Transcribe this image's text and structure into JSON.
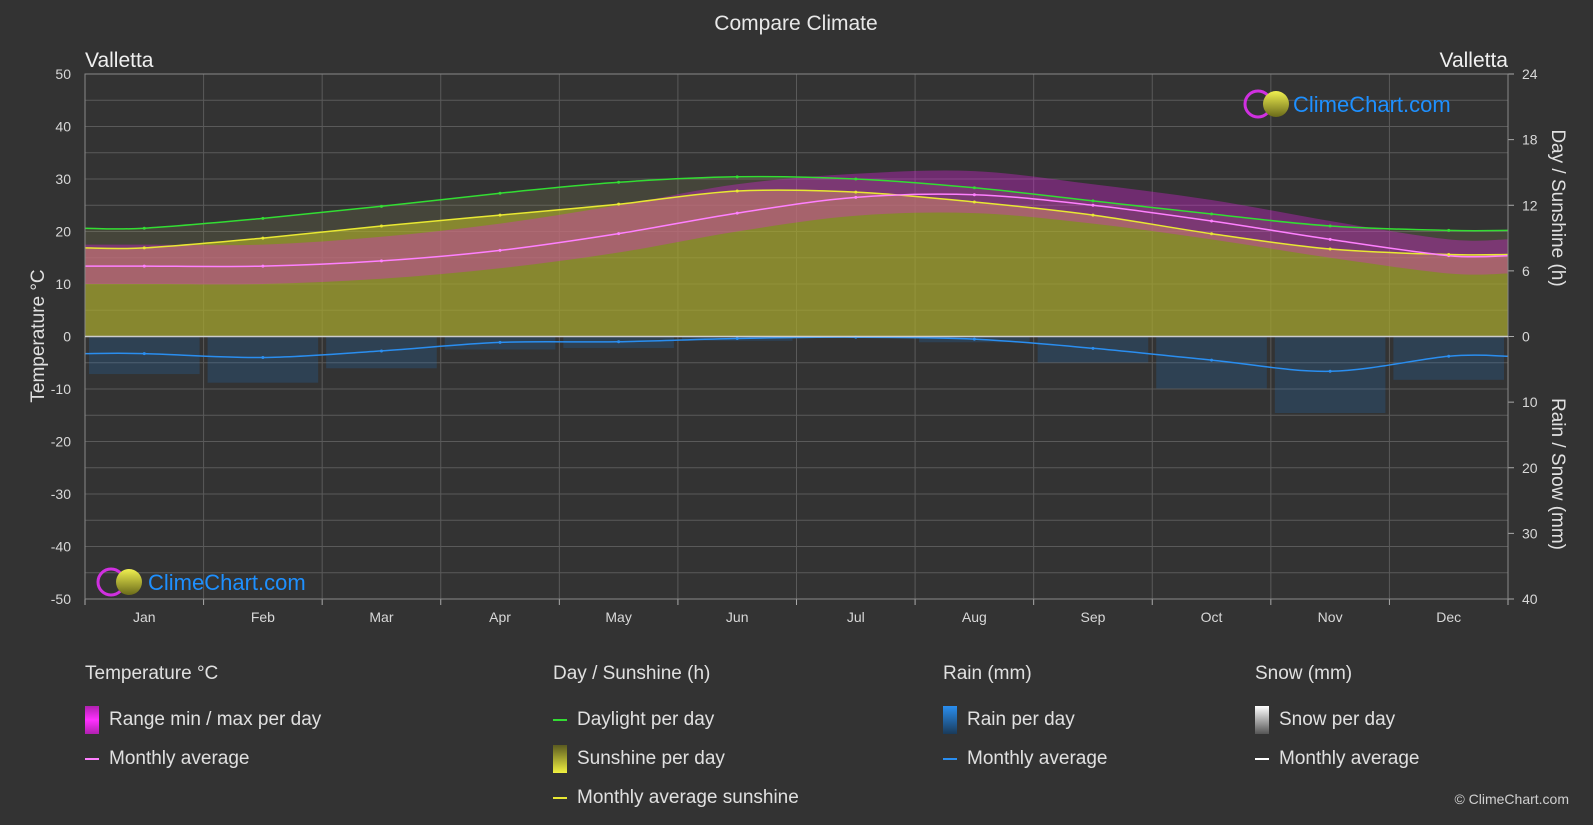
{
  "title": "Compare Climate",
  "location_left": "Valletta",
  "location_right": "Valletta",
  "brand": "ClimeChart.com",
  "copyright": "© ClimeChart.com",
  "colors": {
    "background": "#333333",
    "grid": "#5a5a5a",
    "temp_range": "#e020e0",
    "temp_avg": "#ff80ff",
    "daylight": "#33dd33",
    "sunshine_fill": "#a8a82e",
    "sunshine_avg": "#e8e833",
    "rain": "#1e78c8",
    "rain_avg": "#2a8ef0",
    "snow_avg": "#ffffff",
    "brand_text": "#1e90ff"
  },
  "chart_data": {
    "type": "area",
    "months": [
      "Jan",
      "Feb",
      "Mar",
      "Apr",
      "May",
      "Jun",
      "Jul",
      "Aug",
      "Sep",
      "Oct",
      "Nov",
      "Dec"
    ],
    "axes": {
      "left": {
        "label": "Temperature °C",
        "min": -50,
        "max": 50,
        "ticks": [
          50,
          40,
          30,
          20,
          10,
          0,
          -10,
          -20,
          -30,
          -40,
          -50
        ]
      },
      "right_top": {
        "label": "Day / Sunshine (h)",
        "min": 0,
        "max": 24,
        "ticks": [
          24,
          18,
          12,
          6,
          0
        ]
      },
      "right_bottom": {
        "label": "Rain / Snow (mm)",
        "min": 0,
        "max": 40,
        "ticks": [
          0,
          10,
          20,
          30,
          40
        ]
      }
    },
    "grid": true,
    "series": {
      "temperature_monthly_avg_c": [
        13.4,
        13.4,
        14.4,
        16.4,
        19.6,
        23.5,
        26.5,
        27.0,
        25.0,
        22.0,
        18.5,
        15.4
      ],
      "temperature_max_avg_c": [
        17.5,
        17.5,
        19.0,
        21.5,
        25.0,
        29.0,
        31.0,
        31.5,
        29.0,
        26.0,
        22.0,
        18.5
      ],
      "temperature_min_avg_c": [
        10.0,
        10.0,
        11.0,
        13.0,
        16.0,
        20.0,
        23.0,
        23.5,
        21.5,
        18.5,
        15.0,
        12.0
      ],
      "daylight_h": [
        9.9,
        10.8,
        11.9,
        13.1,
        14.1,
        14.6,
        14.4,
        13.6,
        12.4,
        11.2,
        10.1,
        9.7
      ],
      "sunshine_monthly_avg_h": [
        8.1,
        9.0,
        10.1,
        11.1,
        12.1,
        13.3,
        13.2,
        12.3,
        11.1,
        9.4,
        8.0,
        7.5
      ],
      "rain_monthly_avg_mm": [
        2.6,
        3.2,
        2.2,
        0.9,
        0.8,
        0.3,
        0.1,
        0.4,
        1.8,
        3.6,
        5.3,
        3.0
      ],
      "snow_monthly_avg_mm": [
        0,
        0,
        0,
        0,
        0,
        0,
        0,
        0,
        0,
        0,
        0,
        0
      ]
    }
  },
  "legend": {
    "temperature": {
      "heading": "Temperature °C",
      "items": [
        "Range min / max per day",
        "Monthly average"
      ]
    },
    "sunshine": {
      "heading": "Day / Sunshine (h)",
      "items": [
        "Daylight per day",
        "Sunshine per day",
        "Monthly average sunshine"
      ]
    },
    "rain": {
      "heading": "Rain (mm)",
      "items": [
        "Rain per day",
        "Monthly average"
      ]
    },
    "snow": {
      "heading": "Snow (mm)",
      "items": [
        "Snow per day",
        "Monthly average"
      ]
    }
  }
}
